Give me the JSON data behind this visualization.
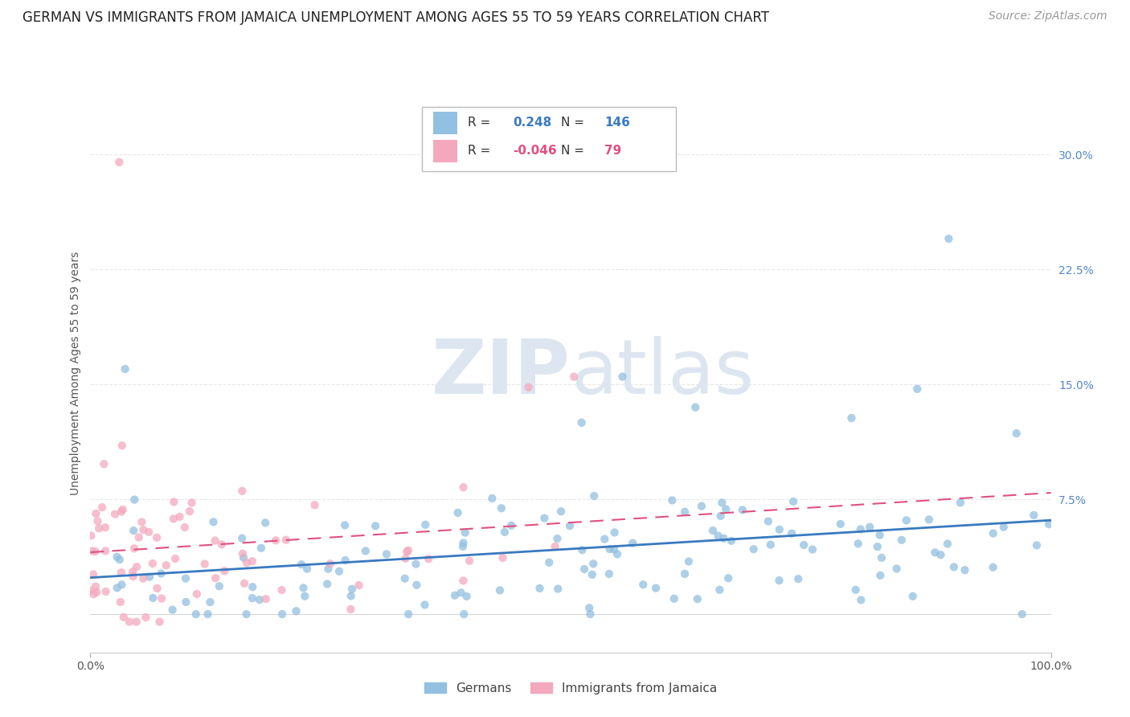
{
  "title": "GERMAN VS IMMIGRANTS FROM JAMAICA UNEMPLOYMENT AMONG AGES 55 TO 59 YEARS CORRELATION CHART",
  "source": "Source: ZipAtlas.com",
  "ylabel": "Unemployment Among Ages 55 to 59 years",
  "xlim": [
    0.0,
    1.0
  ],
  "ylim": [
    -0.025,
    0.34
  ],
  "ytick_vals": [
    0.0,
    0.075,
    0.15,
    0.225,
    0.3
  ],
  "ytick_labels": [
    "",
    "7.5%",
    "15.0%",
    "22.5%",
    "30.0%"
  ],
  "german_color": "#92c0e0",
  "jamaica_color": "#f4a8be",
  "german_R": 0.248,
  "german_N": 146,
  "jamaica_R": -0.046,
  "jamaica_N": 79,
  "watermark_zip": "ZIP",
  "watermark_atlas": "atlas",
  "watermark_color": "#dde6f0",
  "grid_color": "#e8e8e8",
  "grid_style": "--",
  "title_fontsize": 12,
  "axis_label_fontsize": 10,
  "tick_fontsize": 10,
  "legend_fontsize": 11,
  "source_fontsize": 10,
  "german_line_color": "#3a7abf",
  "jamaica_line_color": "#e05080",
  "scatter_size": 55,
  "scatter_alpha": 0.75
}
